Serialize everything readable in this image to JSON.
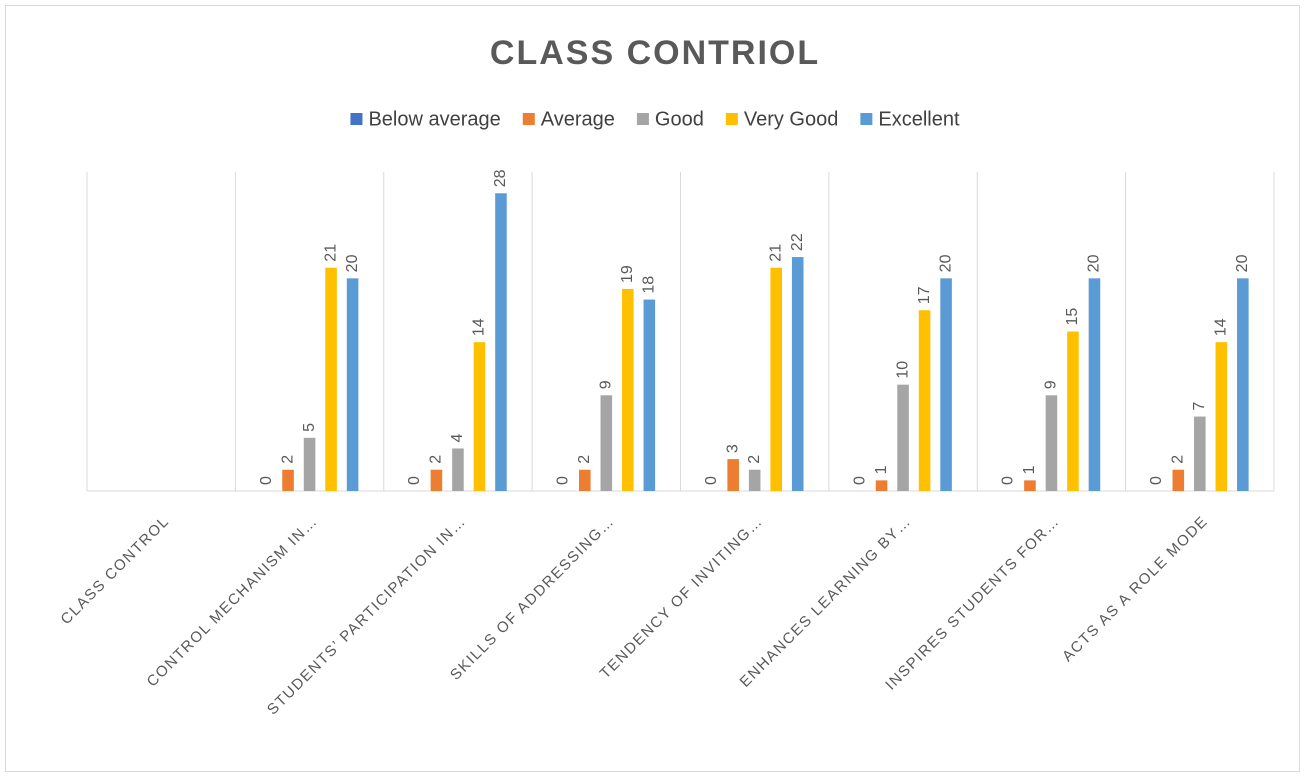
{
  "chart_data": {
    "type": "bar",
    "title": "CLASS CONTRIOL",
    "categories": [
      "CLASS CONTROL",
      "CONTROL MECHANISM IN…",
      "STUDENTS’ PARTICIPATION IN…",
      "SKILLS OF ADDRESSING…",
      "TENDENCY OF INVITING…",
      "ENHANCES LEARNING BY…",
      "INSPIRES STUDENTS FOR…",
      "ACTS AS A ROLE MODE"
    ],
    "series": [
      {
        "name": "Below average",
        "color": "#4472c4",
        "values": [
          null,
          0,
          0,
          0,
          0,
          0,
          0,
          0
        ]
      },
      {
        "name": "Average",
        "color": "#ed7d31",
        "values": [
          null,
          2,
          2,
          2,
          3,
          1,
          1,
          2
        ]
      },
      {
        "name": "Good",
        "color": "#a5a5a5",
        "values": [
          null,
          5,
          4,
          9,
          2,
          10,
          9,
          7
        ]
      },
      {
        "name": "Very Good",
        "color": "#ffc000",
        "values": [
          null,
          21,
          14,
          19,
          21,
          17,
          15,
          14
        ]
      },
      {
        "name": "Excellent",
        "color": "#5b9bd5",
        "values": [
          null,
          20,
          28,
          18,
          22,
          20,
          20,
          20
        ]
      }
    ],
    "ylim": [
      0,
      30
    ],
    "legend": "top"
  }
}
